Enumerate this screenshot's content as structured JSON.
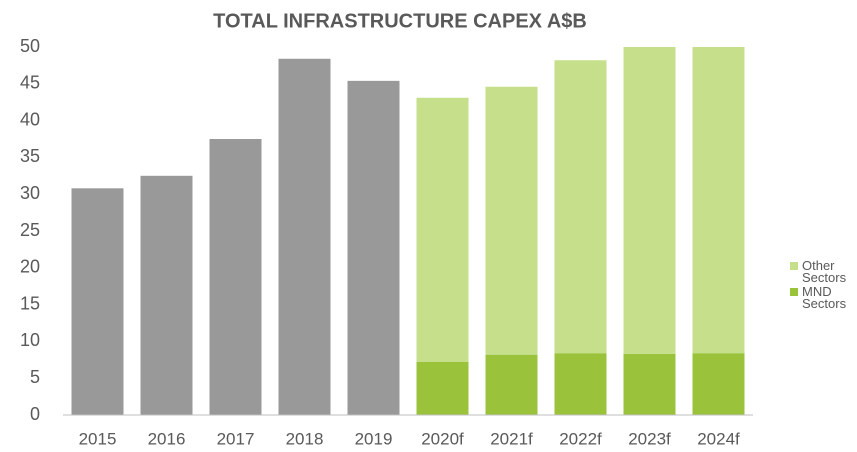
{
  "chart_data": {
    "type": "stacked_bar",
    "title": "TOTAL INFRASTRUCTURE CAPEX A$B",
    "categories": [
      "2015",
      "2016",
      "2017",
      "2018",
      "2019",
      "2020f",
      "2021f",
      "2022f",
      "2023f",
      "2024f"
    ],
    "series": [
      {
        "color": "#999999",
        "values": [
          30.8,
          32.5,
          37.5,
          48.4,
          45.4,
          null,
          null,
          null,
          null,
          null
        ]
      },
      {
        "name": "MND Sectors",
        "color": "#9ac33b",
        "values": [
          null,
          null,
          null,
          null,
          null,
          7.2,
          8.2,
          8.4,
          8.3,
          8.4
        ]
      },
      {
        "name": "Other Sectors",
        "color": "#c5df8a",
        "values": [
          null,
          null,
          null,
          null,
          null,
          35.9,
          36.4,
          39.8,
          41.7,
          41.6
        ]
      }
    ],
    "legend_order": [
      2,
      1
    ],
    "ylim": [
      0,
      50
    ],
    "yticks": [
      0,
      5,
      10,
      15,
      20,
      25,
      30,
      35,
      40,
      45,
      50
    ]
  }
}
